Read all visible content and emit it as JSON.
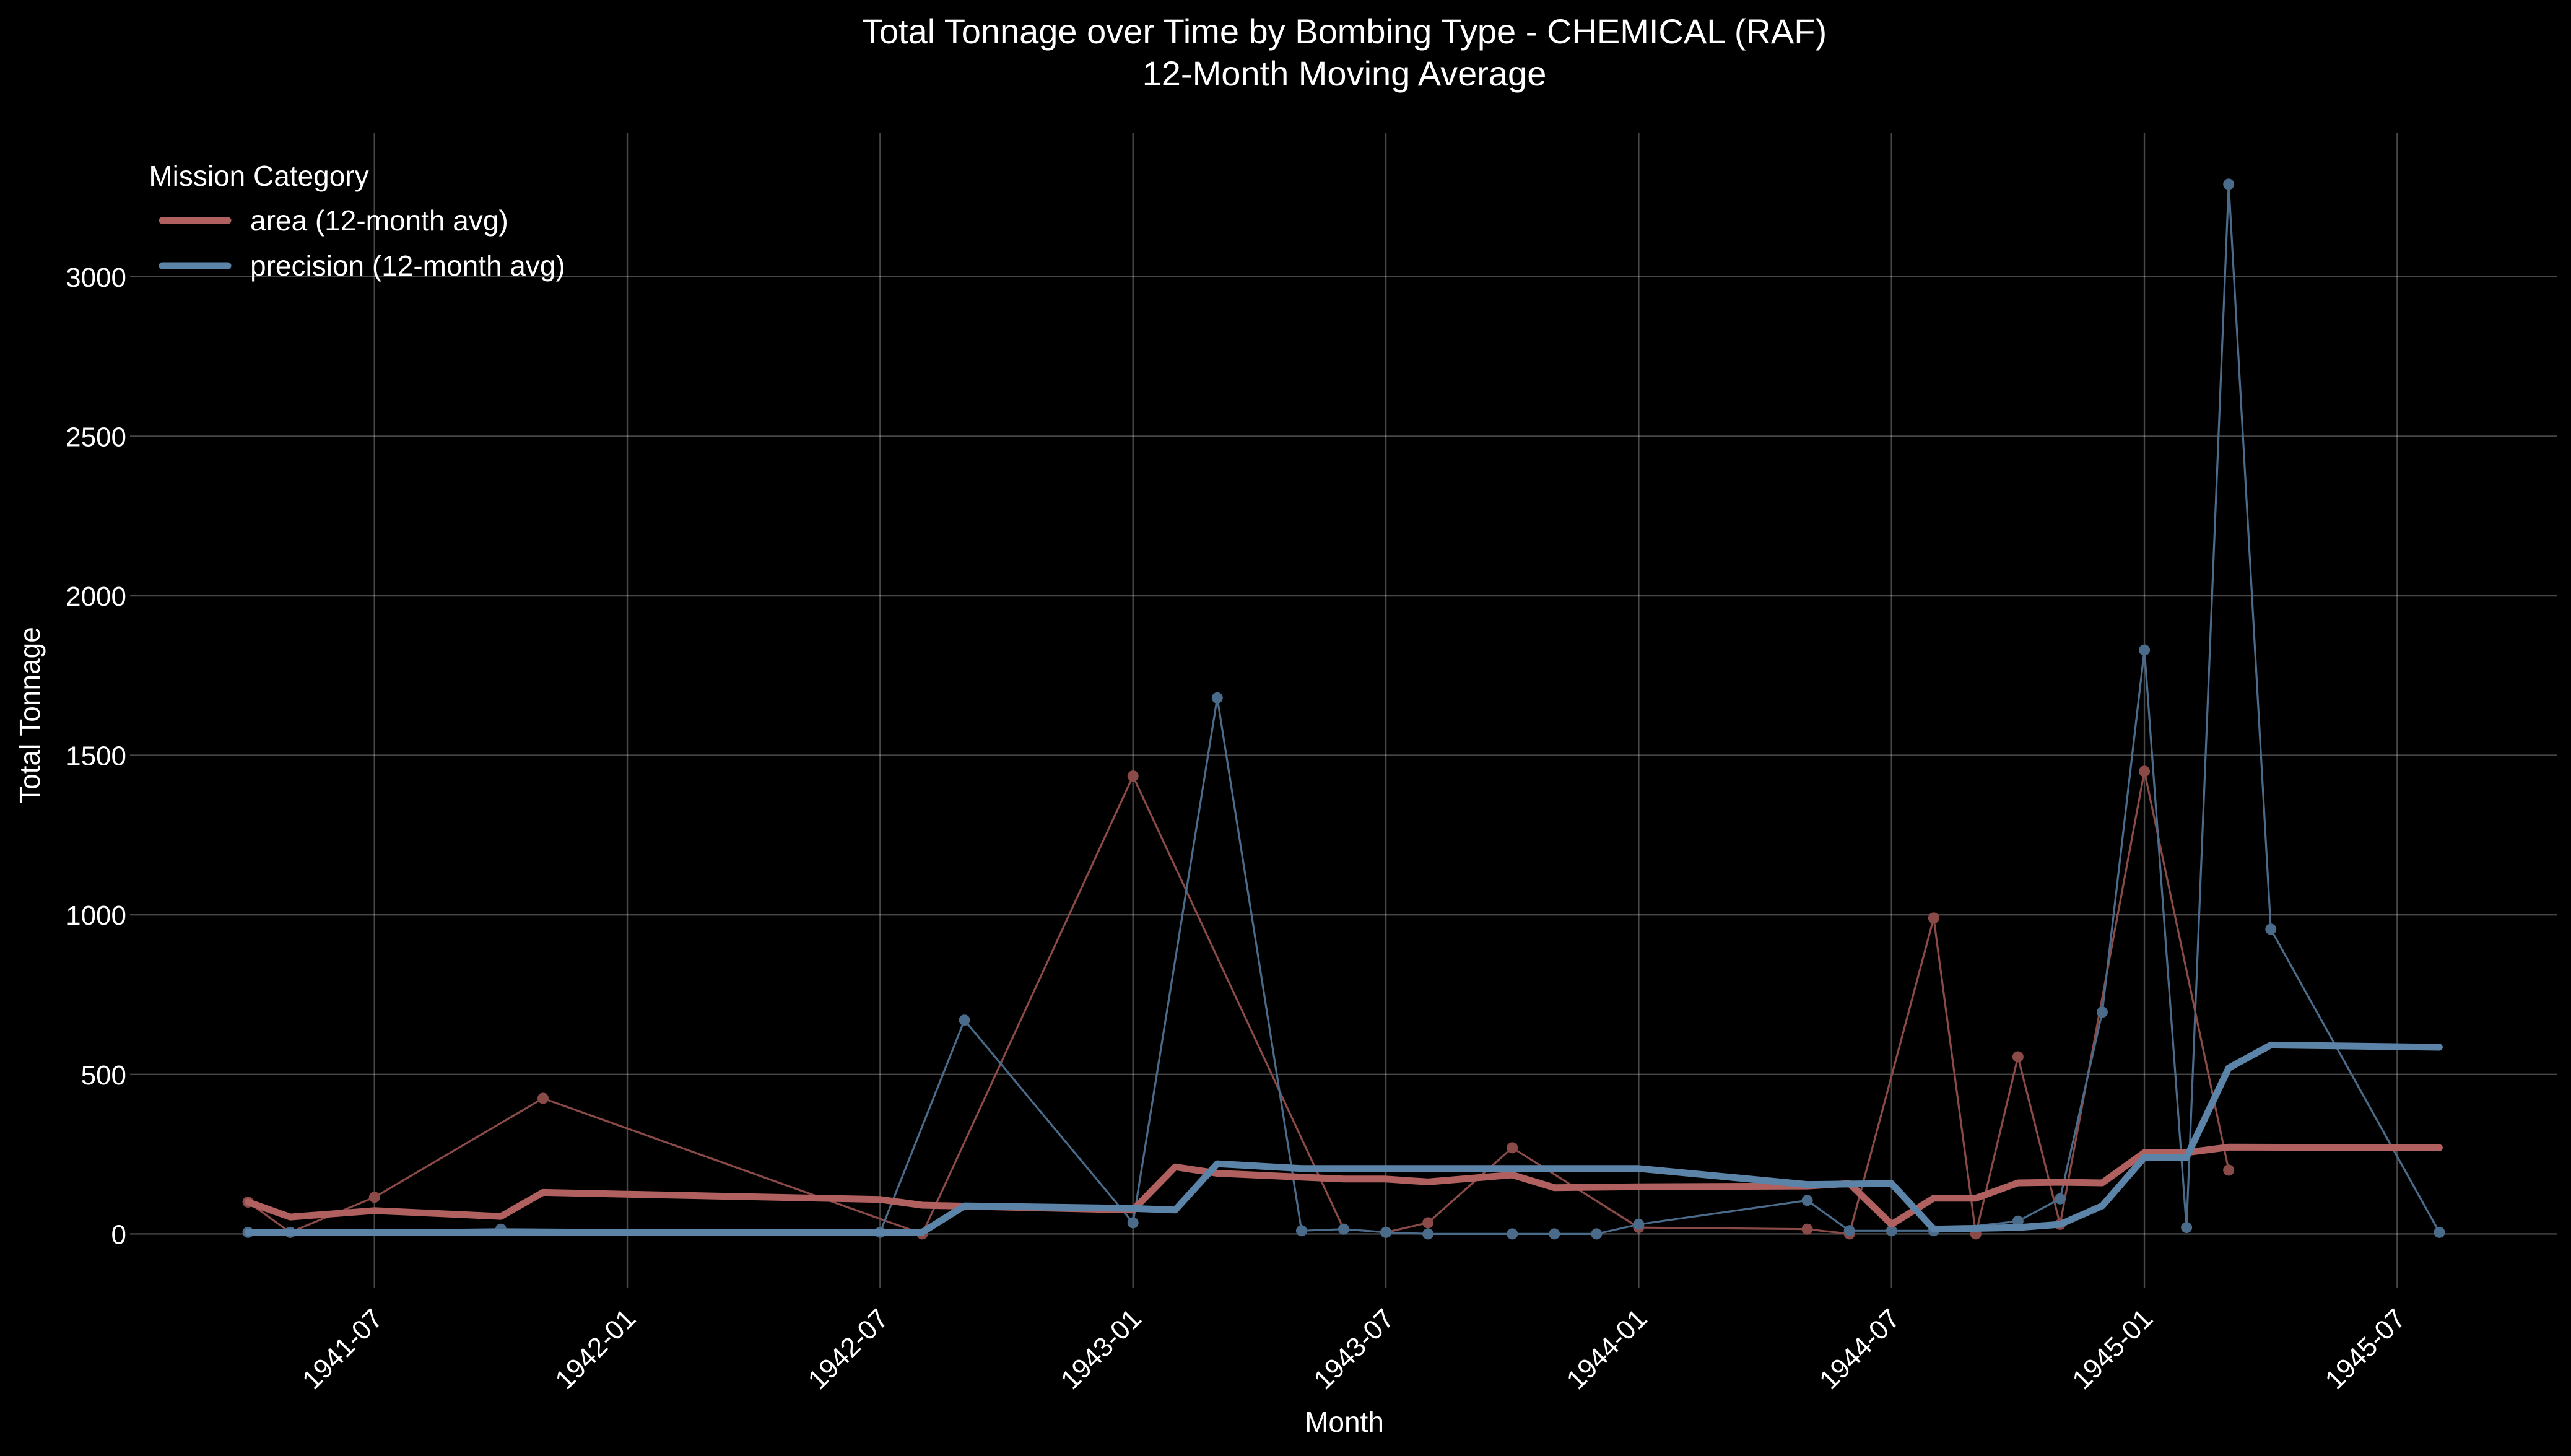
{
  "chart_data": {
    "type": "line",
    "title": "Total Tonnage over Time by Bombing Type - CHEMICAL (RAF)",
    "subtitle": "12-Month Moving Average",
    "xlabel": "Month",
    "ylabel": "Total Tonnage",
    "x_start": "1941-04",
    "x_end": "1945-08",
    "xlim_months": [
      -2.8,
      54.8
    ],
    "ylim": [
      -170,
      3450
    ],
    "x_ticks": [
      {
        "label": "1941-07",
        "m": 3
      },
      {
        "label": "1942-01",
        "m": 9
      },
      {
        "label": "1942-07",
        "m": 15
      },
      {
        "label": "1943-01",
        "m": 21
      },
      {
        "label": "1943-07",
        "m": 27
      },
      {
        "label": "1944-01",
        "m": 33
      },
      {
        "label": "1944-07",
        "m": 39
      },
      {
        "label": "1945-01",
        "m": 45
      },
      {
        "label": "1945-07",
        "m": 51
      }
    ],
    "y_ticks": [
      {
        "label": "0",
        "v": 0
      },
      {
        "label": "500",
        "v": 500
      },
      {
        "label": "1000",
        "v": 1000
      },
      {
        "label": "1500",
        "v": 1500
      },
      {
        "label": "2000",
        "v": 2000
      },
      {
        "label": "2500",
        "v": 2500
      },
      {
        "label": "3000",
        "v": 3000
      }
    ],
    "grid": true,
    "legend": {
      "title": "Mission Category",
      "placement": "top-left"
    },
    "series": [
      {
        "name": "area (12-month avg)",
        "color": "#b0605e",
        "raw_color": "#8a4a48",
        "raw": [
          {
            "m": 0,
            "v": 100
          },
          {
            "m": 1,
            "v": 5
          },
          {
            "m": 3,
            "v": 115
          },
          {
            "m": 7,
            "v": 425
          },
          {
            "m": 16,
            "v": 0
          },
          {
            "m": 21,
            "v": 1435
          },
          {
            "m": 26,
            "v": 15
          },
          {
            "m": 27,
            "v": 5
          },
          {
            "m": 28,
            "v": 35
          },
          {
            "m": 30,
            "v": 270
          },
          {
            "m": 33,
            "v": 20
          },
          {
            "m": 37,
            "v": 15
          },
          {
            "m": 38,
            "v": 0
          },
          {
            "m": 40,
            "v": 990
          },
          {
            "m": 41,
            "v": 0
          },
          {
            "m": 42,
            "v": 555
          },
          {
            "m": 43,
            "v": 30
          },
          {
            "m": 45,
            "v": 1450
          },
          {
            "m": 47,
            "v": 200
          }
        ],
        "avg": [
          {
            "m": 0,
            "v": 100
          },
          {
            "m": 1,
            "v": 53
          },
          {
            "m": 3,
            "v": 73
          },
          {
            "m": 6,
            "v": 55
          },
          {
            "m": 7,
            "v": 130
          },
          {
            "m": 15,
            "v": 108
          },
          {
            "m": 16,
            "v": 90
          },
          {
            "m": 21,
            "v": 75
          },
          {
            "m": 22,
            "v": 210
          },
          {
            "m": 23,
            "v": 190
          },
          {
            "m": 26,
            "v": 172
          },
          {
            "m": 27,
            "v": 172
          },
          {
            "m": 28,
            "v": 163
          },
          {
            "m": 30,
            "v": 185
          },
          {
            "m": 31,
            "v": 145
          },
          {
            "m": 33,
            "v": 148
          },
          {
            "m": 37,
            "v": 150
          },
          {
            "m": 38,
            "v": 158
          },
          {
            "m": 39,
            "v": 30
          },
          {
            "m": 40,
            "v": 112
          },
          {
            "m": 41,
            "v": 112
          },
          {
            "m": 42,
            "v": 160
          },
          {
            "m": 43,
            "v": 162
          },
          {
            "m": 44,
            "v": 160
          },
          {
            "m": 45,
            "v": 255
          },
          {
            "m": 46,
            "v": 255
          },
          {
            "m": 47,
            "v": 272
          },
          {
            "m": 52,
            "v": 270
          }
        ]
      },
      {
        "name": "precision (12-month avg)",
        "color": "#5b84a8",
        "raw_color": "#4a6b8a",
        "raw": [
          {
            "m": 0,
            "v": 5
          },
          {
            "m": 1,
            "v": 5
          },
          {
            "m": 6,
            "v": 15
          },
          {
            "m": 15,
            "v": 5
          },
          {
            "m": 17,
            "v": 670
          },
          {
            "m": 21,
            "v": 35
          },
          {
            "m": 23,
            "v": 1680
          },
          {
            "m": 25,
            "v": 10
          },
          {
            "m": 26,
            "v": 15
          },
          {
            "m": 27,
            "v": 5
          },
          {
            "m": 28,
            "v": 0
          },
          {
            "m": 30,
            "v": 0
          },
          {
            "m": 31,
            "v": 0
          },
          {
            "m": 32,
            "v": 0
          },
          {
            "m": 33,
            "v": 30
          },
          {
            "m": 37,
            "v": 105
          },
          {
            "m": 38,
            "v": 10
          },
          {
            "m": 39,
            "v": 10
          },
          {
            "m": 40,
            "v": 10
          },
          {
            "m": 42,
            "v": 40
          },
          {
            "m": 43,
            "v": 110
          },
          {
            "m": 44,
            "v": 695
          },
          {
            "m": 45,
            "v": 1830
          },
          {
            "m": 46,
            "v": 20
          },
          {
            "m": 47,
            "v": 3290
          },
          {
            "m": 48,
            "v": 955
          },
          {
            "m": 52,
            "v": 5
          }
        ],
        "avg": [
          {
            "m": 0,
            "v": 5
          },
          {
            "m": 1,
            "v": 5
          },
          {
            "m": 6,
            "v": 5
          },
          {
            "m": 15,
            "v": 5
          },
          {
            "m": 16,
            "v": 5
          },
          {
            "m": 17,
            "v": 88
          },
          {
            "m": 21,
            "v": 80
          },
          {
            "m": 22,
            "v": 75
          },
          {
            "m": 23,
            "v": 220
          },
          {
            "m": 25,
            "v": 205
          },
          {
            "m": 33,
            "v": 205
          },
          {
            "m": 37,
            "v": 155
          },
          {
            "m": 39,
            "v": 158
          },
          {
            "m": 40,
            "v": 15
          },
          {
            "m": 42,
            "v": 20
          },
          {
            "m": 43,
            "v": 30
          },
          {
            "m": 44,
            "v": 88
          },
          {
            "m": 45,
            "v": 240
          },
          {
            "m": 46,
            "v": 240
          },
          {
            "m": 47,
            "v": 520
          },
          {
            "m": 48,
            "v": 592
          },
          {
            "m": 52,
            "v": 585
          }
        ]
      }
    ]
  }
}
